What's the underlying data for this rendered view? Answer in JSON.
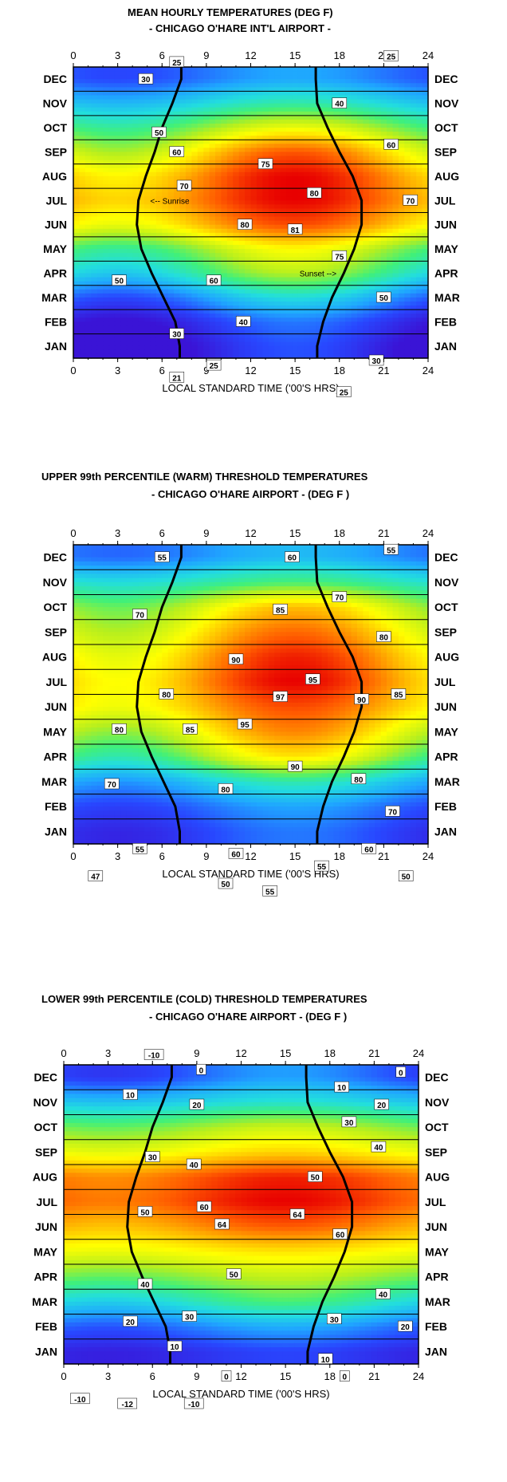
{
  "colors": {
    "scale": [
      "#3a14d6",
      "#2848ff",
      "#1fa6ff",
      "#22dede",
      "#40f07a",
      "#b6ef1e",
      "#ffff00",
      "#ffb000",
      "#ff5a00",
      "#e80000"
    ],
    "axis": "#000000",
    "line": "#000000"
  },
  "chart_data": [
    {
      "type": "heatmap",
      "title": "MEAN HOURLY TEMPERATURES (DEG F)",
      "subtitle": "- CHICAGO O'HARE INT'L AIRPORT -",
      "xlabel": "LOCAL STANDARD TIME ('00'S HRS)",
      "ylabel": "",
      "x_ticks": [
        "0",
        "3",
        "6",
        "9",
        "12",
        "15",
        "18",
        "21",
        "24"
      ],
      "xlim": [
        0,
        24
      ],
      "months": [
        "DEC",
        "NOV",
        "OCT",
        "SEP",
        "AUG",
        "JUL",
        "JUN",
        "MAY",
        "APR",
        "MAR",
        "FEB",
        "JAN"
      ],
      "vrange": [
        18,
        84
      ],
      "month_lows": [
        25,
        35,
        45,
        54,
        63,
        66,
        60,
        45,
        37,
        25,
        17,
        13
      ],
      "month_highs": [
        33,
        44,
        60,
        77,
        84,
        84,
        78,
        62,
        55,
        40,
        29,
        26
      ],
      "sunrise_label": "<-- Sunrise",
      "sunset_label": "Sunset -->",
      "sunrise": [
        7.3,
        6.7,
        6.0,
        5.5,
        4.9,
        4.4,
        4.3,
        4.6,
        5.3,
        6.1,
        6.9,
        7.2
      ],
      "sunset": [
        16.4,
        16.5,
        17.2,
        18.0,
        18.9,
        19.5,
        19.5,
        19.0,
        18.3,
        17.5,
        16.9,
        16.5
      ],
      "labels": [
        {
          "t": "25",
          "h": 7.0,
          "m": 11.7
        },
        {
          "t": "25",
          "h": 21.5,
          "m": 11.95
        },
        {
          "t": "30",
          "h": 4.9,
          "m": 11.0
        },
        {
          "t": "40",
          "h": 18.0,
          "m": 10.0
        },
        {
          "t": "50",
          "h": 5.8,
          "m": 8.8
        },
        {
          "t": "60",
          "h": 7.0,
          "m": 8.0
        },
        {
          "t": "60",
          "h": 21.5,
          "m": 8.3
        },
        {
          "t": "75",
          "h": 13.0,
          "m": 7.5
        },
        {
          "t": "70",
          "h": 7.5,
          "m": 6.6
        },
        {
          "t": "80",
          "h": 16.3,
          "m": 6.3
        },
        {
          "t": "70",
          "h": 22.8,
          "m": 6.0
        },
        {
          "t": "80",
          "h": 11.6,
          "m": 5.0
        },
        {
          "t": "81",
          "h": 15.0,
          "m": 4.8
        },
        {
          "t": "75",
          "h": 18.0,
          "m": 3.7
        },
        {
          "t": "50",
          "h": 3.1,
          "m": 2.7
        },
        {
          "t": "60",
          "h": 9.5,
          "m": 2.7
        },
        {
          "t": "50",
          "h": 21.0,
          "m": 2.0
        },
        {
          "t": "40",
          "h": 11.5,
          "m": 1.0
        },
        {
          "t": "30",
          "h": 7.0,
          "m": 0.5
        },
        {
          "t": "30",
          "h": 20.5,
          "m": -0.6
        },
        {
          "t": "25",
          "h": 9.5,
          "m": -0.8
        },
        {
          "t": "21",
          "h": 7.0,
          "m": -1.3
        },
        {
          "t": "25",
          "h": 18.3,
          "m": -1.9
        }
      ]
    },
    {
      "type": "heatmap",
      "title": "UPPER 99th PERCENTILE (WARM) THRESHOLD TEMPERATURES",
      "subtitle": "- CHICAGO O'HARE AIRPORT -    (DEG F )",
      "xlabel": "LOCAL STANDARD TIME ('00'S HRS)",
      "ylabel": "",
      "x_ticks": [
        "0",
        "3",
        "6",
        "9",
        "12",
        "15",
        "18",
        "21",
        "24"
      ],
      "xlim": [
        0,
        24
      ],
      "months": [
        "DEC",
        "NOV",
        "OCT",
        "SEP",
        "AUG",
        "JUL",
        "JUN",
        "MAY",
        "APR",
        "MAR",
        "FEB",
        "JAN"
      ],
      "vrange": [
        44,
        98
      ],
      "month_lows": [
        52,
        62,
        70,
        74,
        78,
        80,
        79,
        72,
        65,
        55,
        49,
        46
      ],
      "month_highs": [
        58,
        68,
        85,
        91,
        96,
        98,
        93,
        89,
        82,
        65,
        56,
        53
      ],
      "sunrise_label": "",
      "sunset_label": "",
      "sunrise": [
        7.3,
        6.7,
        6.0,
        5.5,
        4.9,
        4.4,
        4.3,
        4.6,
        5.3,
        6.1,
        6.9,
        7.2
      ],
      "sunset": [
        16.4,
        16.5,
        17.2,
        18.0,
        18.9,
        19.5,
        19.5,
        19.0,
        18.3,
        17.5,
        16.9,
        16.5
      ],
      "labels": [
        {
          "t": "55",
          "h": 6.0,
          "m": 11.0
        },
        {
          "t": "60",
          "h": 14.8,
          "m": 11.0
        },
        {
          "t": "55",
          "h": 21.5,
          "m": 11.3
        },
        {
          "t": "70",
          "h": 18.0,
          "m": 9.4
        },
        {
          "t": "70",
          "h": 4.5,
          "m": 8.7
        },
        {
          "t": "85",
          "h": 14.0,
          "m": 8.9
        },
        {
          "t": "80",
          "h": 21.0,
          "m": 7.8
        },
        {
          "t": "90",
          "h": 11.0,
          "m": 6.9
        },
        {
          "t": "95",
          "h": 16.2,
          "m": 6.1
        },
        {
          "t": "80",
          "h": 6.3,
          "m": 5.5
        },
        {
          "t": "97",
          "h": 14.0,
          "m": 5.4
        },
        {
          "t": "90",
          "h": 19.5,
          "m": 5.3
        },
        {
          "t": "85",
          "h": 22.0,
          "m": 5.5
        },
        {
          "t": "95",
          "h": 11.6,
          "m": 4.3
        },
        {
          "t": "85",
          "h": 7.9,
          "m": 4.1
        },
        {
          "t": "80",
          "h": 3.1,
          "m": 4.1
        },
        {
          "t": "90",
          "h": 15.0,
          "m": 2.6
        },
        {
          "t": "80",
          "h": 19.3,
          "m": 2.1
        },
        {
          "t": "70",
          "h": 2.6,
          "m": 1.9
        },
        {
          "t": "80",
          "h": 10.3,
          "m": 1.7
        },
        {
          "t": "70",
          "h": 21.6,
          "m": 0.8
        },
        {
          "t": "55",
          "h": 4.5,
          "m": -0.7
        },
        {
          "t": "60",
          "h": 11.0,
          "m": -0.9
        },
        {
          "t": "60",
          "h": 20.0,
          "m": -0.7
        },
        {
          "t": "55",
          "h": 16.8,
          "m": -1.4
        },
        {
          "t": "47",
          "h": 1.5,
          "m": -1.8
        },
        {
          "t": "50",
          "h": 10.3,
          "m": -2.1
        },
        {
          "t": "50",
          "h": 22.5,
          "m": -1.8
        },
        {
          "t": "55",
          "h": 13.3,
          "m": -2.4
        }
      ]
    },
    {
      "type": "heatmap",
      "title": "LOWER 99th PERCENTILE (COLD) THRESHOLD TEMPERATURES",
      "subtitle": "- CHICAGO O'HARE AIRPORT -    (DEG F )",
      "xlabel": "LOCAL STANDARD TIME ('00'S HRS)",
      "ylabel": "",
      "x_ticks": [
        "0",
        "3",
        "6",
        "9",
        "12",
        "15",
        "18",
        "21",
        "24"
      ],
      "xlim": [
        0,
        24
      ],
      "months": [
        "DEC",
        "NOV",
        "OCT",
        "SEP",
        "AUG",
        "JUL",
        "JUN",
        "MAY",
        "APR",
        "MAR",
        "FEB",
        "JAN"
      ],
      "vrange": [
        -14,
        66
      ],
      "month_lows": [
        -8,
        8,
        24,
        36,
        52,
        54,
        46,
        37,
        24,
        10,
        -4,
        -12
      ],
      "month_highs": [
        3,
        14,
        33,
        44,
        63,
        66,
        57,
        42,
        32,
        22,
        5,
        -6
      ],
      "sunrise_label": "",
      "sunset_label": "",
      "sunrise": [
        7.3,
        6.7,
        6.0,
        5.5,
        4.9,
        4.4,
        4.3,
        4.6,
        5.3,
        6.1,
        6.9,
        7.2
      ],
      "sunset": [
        16.4,
        16.5,
        17.2,
        18.0,
        18.9,
        19.5,
        19.5,
        19.0,
        18.3,
        17.5,
        16.9,
        16.5
      ],
      "labels": [
        {
          "t": "-10",
          "h": 6.1,
          "m": 11.9
        },
        {
          "t": "0",
          "h": 9.3,
          "m": 11.3
        },
        {
          "t": "0",
          "h": 22.8,
          "m": 11.2
        },
        {
          "t": "10",
          "h": 4.5,
          "m": 10.3
        },
        {
          "t": "10",
          "h": 18.8,
          "m": 10.6
        },
        {
          "t": "20",
          "h": 9.0,
          "m": 9.9
        },
        {
          "t": "20",
          "h": 21.5,
          "m": 9.9
        },
        {
          "t": "30",
          "h": 19.3,
          "m": 9.2
        },
        {
          "t": "30",
          "h": 6.0,
          "m": 7.8
        },
        {
          "t": "40",
          "h": 8.8,
          "m": 7.5
        },
        {
          "t": "40",
          "h": 21.3,
          "m": 8.2
        },
        {
          "t": "50",
          "h": 17.0,
          "m": 7.0
        },
        {
          "t": "50",
          "h": 5.5,
          "m": 5.6
        },
        {
          "t": "60",
          "h": 9.5,
          "m": 5.8
        },
        {
          "t": "64",
          "h": 15.8,
          "m": 5.5
        },
        {
          "t": "64",
          "h": 10.7,
          "m": 5.1
        },
        {
          "t": "60",
          "h": 18.7,
          "m": 4.7
        },
        {
          "t": "50",
          "h": 11.5,
          "m": 3.1
        },
        {
          "t": "40",
          "h": 5.5,
          "m": 2.7
        },
        {
          "t": "40",
          "h": 21.6,
          "m": 2.3
        },
        {
          "t": "20",
          "h": 4.5,
          "m": 1.2
        },
        {
          "t": "30",
          "h": 8.5,
          "m": 1.4
        },
        {
          "t": "30",
          "h": 18.3,
          "m": 1.3
        },
        {
          "t": "20",
          "h": 23.1,
          "m": 1.0
        },
        {
          "t": "10",
          "h": 7.5,
          "m": 0.2
        },
        {
          "t": "10",
          "h": 17.7,
          "m": -0.3
        },
        {
          "t": "0",
          "h": 11.0,
          "m": -1.0
        },
        {
          "t": "0",
          "h": 19.0,
          "m": -1.0
        },
        {
          "t": "-10",
          "h": 1.1,
          "m": -1.9
        },
        {
          "t": "-12",
          "h": 4.3,
          "m": -2.1
        },
        {
          "t": "-10",
          "h": 8.8,
          "m": -2.1
        }
      ]
    }
  ]
}
